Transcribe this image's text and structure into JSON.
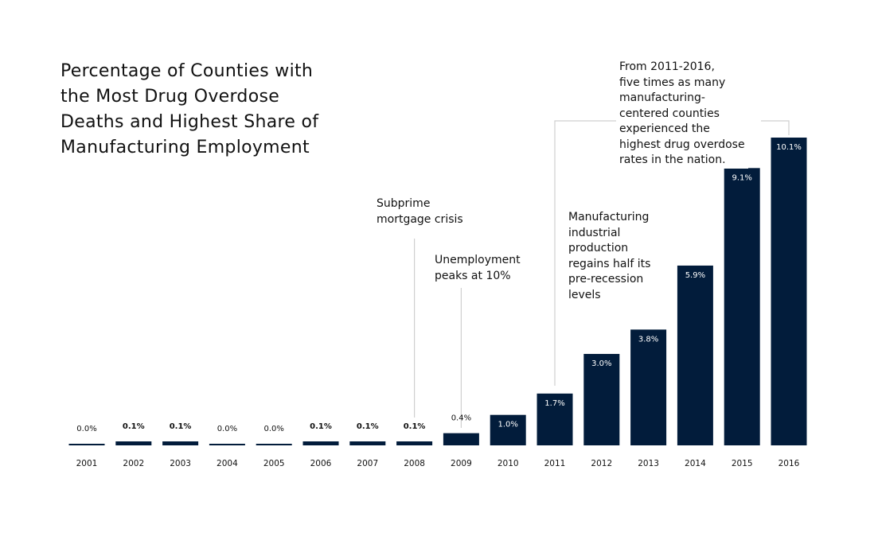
{
  "chart_data": {
    "type": "bar",
    "title": "Percentage of Counties with\nthe Most Drug Overdose\nDeaths and Highest Share of\nManufacturing Employment",
    "xlabel": "",
    "ylabel": "",
    "categories": [
      "2001",
      "2002",
      "2003",
      "2004",
      "2005",
      "2006",
      "2007",
      "2008",
      "2009",
      "2010",
      "2011",
      "2012",
      "2013",
      "2014",
      "2015",
      "2016"
    ],
    "values": [
      0.0,
      0.1,
      0.1,
      0.0,
      0.0,
      0.1,
      0.1,
      0.1,
      0.4,
      1.0,
      1.7,
      3.0,
      3.8,
      5.9,
      9.1,
      10.1
    ],
    "data_labels": [
      "0.0%",
      "0.1%",
      "0.1%",
      "0.0%",
      "0.0%",
      "0.1%",
      "0.1%",
      "0.1%",
      "0.4%",
      "1.0%",
      "1.7%",
      "3.0%",
      "3.8%",
      "5.9%",
      "9.1%",
      "10.1%"
    ],
    "ylim": [
      0,
      10.1
    ],
    "grid": false,
    "bar_color": "#021c3b",
    "annotations": [
      {
        "text": "Subprime\nmortgage crisis",
        "category": "2008"
      },
      {
        "text": "Unemployment\npeaks at 10%",
        "category": "2009"
      },
      {
        "text": "Manufacturing\nindustrial\nproduction\nregains half its\npre-recession\nlevels",
        "category": "2011"
      },
      {
        "text": "From 2011-2016,\nfive times as many\nmanufacturing-\ncentered counties\nexperienced the\nhighest drug overdose\nrates in the nation.",
        "category": "2011-2016"
      }
    ]
  }
}
